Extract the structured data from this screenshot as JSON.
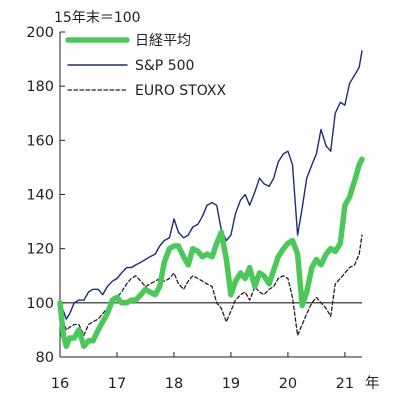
{
  "chart_data": {
    "type": "line",
    "unit_label": "15年末＝100",
    "x_unit_label": "年",
    "x_ticks": [
      "16",
      "17",
      "18",
      "19",
      "20",
      "21"
    ],
    "y_ticks": [
      80,
      100,
      120,
      140,
      160,
      180,
      200
    ],
    "ylim": [
      80,
      200
    ],
    "xlim": [
      2016.0,
      2021.3
    ],
    "reference_line": 100,
    "grid": false,
    "legend_position": "top-left",
    "series": [
      {
        "name": "日経平均",
        "color": "#4cc75a",
        "style": "thick",
        "points": [
          [
            2016.0,
            100
          ],
          [
            2016.06,
            88
          ],
          [
            2016.11,
            84
          ],
          [
            2016.17,
            87
          ],
          [
            2016.25,
            87
          ],
          [
            2016.33,
            90
          ],
          [
            2016.42,
            84
          ],
          [
            2016.5,
            86
          ],
          [
            2016.58,
            86
          ],
          [
            2016.67,
            90
          ],
          [
            2016.75,
            93
          ],
          [
            2016.83,
            96
          ],
          [
            2016.92,
            101
          ],
          [
            2017.0,
            102
          ],
          [
            2017.08,
            100
          ],
          [
            2017.17,
            100
          ],
          [
            2017.25,
            101
          ],
          [
            2017.33,
            101
          ],
          [
            2017.42,
            103
          ],
          [
            2017.5,
            105
          ],
          [
            2017.58,
            104
          ],
          [
            2017.67,
            103
          ],
          [
            2017.75,
            106
          ],
          [
            2017.83,
            115
          ],
          [
            2017.92,
            120
          ],
          [
            2018.0,
            121
          ],
          [
            2018.08,
            121
          ],
          [
            2018.17,
            117
          ],
          [
            2018.25,
            114
          ],
          [
            2018.33,
            120
          ],
          [
            2018.42,
            119
          ],
          [
            2018.5,
            117
          ],
          [
            2018.58,
            118
          ],
          [
            2018.67,
            117
          ],
          [
            2018.75,
            122
          ],
          [
            2018.83,
            126
          ],
          [
            2018.92,
            116
          ],
          [
            2019.0,
            103
          ],
          [
            2019.08,
            108
          ],
          [
            2019.17,
            111
          ],
          [
            2019.25,
            109
          ],
          [
            2019.33,
            113
          ],
          [
            2019.42,
            106
          ],
          [
            2019.5,
            111
          ],
          [
            2019.58,
            110
          ],
          [
            2019.67,
            107
          ],
          [
            2019.75,
            112
          ],
          [
            2019.83,
            117
          ],
          [
            2019.92,
            120
          ],
          [
            2020.0,
            122
          ],
          [
            2020.08,
            123
          ],
          [
            2020.17,
            118
          ],
          [
            2020.25,
            99
          ],
          [
            2020.33,
            104
          ],
          [
            2020.42,
            113
          ],
          [
            2020.5,
            116
          ],
          [
            2020.58,
            114
          ],
          [
            2020.67,
            118
          ],
          [
            2020.75,
            120
          ],
          [
            2020.83,
            119
          ],
          [
            2020.92,
            122
          ],
          [
            2021.0,
            136
          ],
          [
            2021.08,
            139
          ],
          [
            2021.17,
            145
          ],
          [
            2021.25,
            151
          ],
          [
            2021.3,
            153
          ]
        ]
      },
      {
        "name": "S&P 500",
        "color": "#1d2d73",
        "style": "solid",
        "points": [
          [
            2016.0,
            100
          ],
          [
            2016.06,
            97
          ],
          [
            2016.11,
            94
          ],
          [
            2016.17,
            96
          ],
          [
            2016.25,
            100
          ],
          [
            2016.33,
            101
          ],
          [
            2016.42,
            101
          ],
          [
            2016.5,
            104
          ],
          [
            2016.58,
            105
          ],
          [
            2016.67,
            105
          ],
          [
            2016.75,
            103
          ],
          [
            2016.83,
            106
          ],
          [
            2016.92,
            108
          ],
          [
            2017.0,
            109
          ],
          [
            2017.08,
            111
          ],
          [
            2017.17,
            113
          ],
          [
            2017.25,
            113
          ],
          [
            2017.33,
            114
          ],
          [
            2017.42,
            115
          ],
          [
            2017.5,
            116
          ],
          [
            2017.58,
            117
          ],
          [
            2017.67,
            118
          ],
          [
            2017.75,
            121
          ],
          [
            2017.83,
            123
          ],
          [
            2017.92,
            124
          ],
          [
            2018.0,
            131
          ],
          [
            2018.08,
            126
          ],
          [
            2018.17,
            124
          ],
          [
            2018.25,
            125
          ],
          [
            2018.33,
            128
          ],
          [
            2018.42,
            129
          ],
          [
            2018.5,
            132
          ],
          [
            2018.58,
            136
          ],
          [
            2018.67,
            137
          ],
          [
            2018.75,
            136
          ],
          [
            2018.83,
            127
          ],
          [
            2018.92,
            123
          ],
          [
            2019.0,
            125
          ],
          [
            2019.08,
            133
          ],
          [
            2019.17,
            138
          ],
          [
            2019.25,
            140
          ],
          [
            2019.33,
            136
          ],
          [
            2019.42,
            141
          ],
          [
            2019.5,
            146
          ],
          [
            2019.58,
            144
          ],
          [
            2019.67,
            143
          ],
          [
            2019.75,
            146
          ],
          [
            2019.83,
            152
          ],
          [
            2019.92,
            155
          ],
          [
            2020.0,
            156
          ],
          [
            2020.08,
            151
          ],
          [
            2020.17,
            125
          ],
          [
            2020.25,
            135
          ],
          [
            2020.33,
            146
          ],
          [
            2020.42,
            151
          ],
          [
            2020.5,
            155
          ],
          [
            2020.58,
            164
          ],
          [
            2020.67,
            158
          ],
          [
            2020.75,
            156
          ],
          [
            2020.83,
            170
          ],
          [
            2020.92,
            174
          ],
          [
            2021.0,
            173
          ],
          [
            2021.08,
            181
          ],
          [
            2021.17,
            184
          ],
          [
            2021.25,
            187
          ],
          [
            2021.3,
            193
          ]
        ]
      },
      {
        "name": "EURO STOXX",
        "color": "#222222",
        "style": "dashed",
        "points": [
          [
            2016.0,
            100
          ],
          [
            2016.06,
            93
          ],
          [
            2016.11,
            90
          ],
          [
            2016.17,
            91
          ],
          [
            2016.25,
            92
          ],
          [
            2016.33,
            92
          ],
          [
            2016.42,
            88
          ],
          [
            2016.5,
            92
          ],
          [
            2016.58,
            93
          ],
          [
            2016.67,
            94
          ],
          [
            2016.75,
            96
          ],
          [
            2016.83,
            98
          ],
          [
            2016.92,
            101
          ],
          [
            2017.0,
            102
          ],
          [
            2017.08,
            104
          ],
          [
            2017.17,
            107
          ],
          [
            2017.25,
            109
          ],
          [
            2017.33,
            110
          ],
          [
            2017.42,
            108
          ],
          [
            2017.5,
            106
          ],
          [
            2017.58,
            107
          ],
          [
            2017.67,
            108
          ],
          [
            2017.75,
            109
          ],
          [
            2017.83,
            108
          ],
          [
            2017.92,
            109
          ],
          [
            2018.0,
            111
          ],
          [
            2018.08,
            107
          ],
          [
            2018.17,
            105
          ],
          [
            2018.25,
            108
          ],
          [
            2018.33,
            110
          ],
          [
            2018.42,
            109
          ],
          [
            2018.5,
            108
          ],
          [
            2018.58,
            107
          ],
          [
            2018.67,
            106
          ],
          [
            2018.75,
            100
          ],
          [
            2018.83,
            98
          ],
          [
            2018.92,
            93
          ],
          [
            2019.0,
            97
          ],
          [
            2019.08,
            101
          ],
          [
            2019.17,
            103
          ],
          [
            2019.25,
            104
          ],
          [
            2019.33,
            101
          ],
          [
            2019.42,
            106
          ],
          [
            2019.5,
            104
          ],
          [
            2019.58,
            103
          ],
          [
            2019.67,
            105
          ],
          [
            2019.75,
            106
          ],
          [
            2019.83,
            109
          ],
          [
            2019.92,
            110
          ],
          [
            2020.0,
            109
          ],
          [
            2020.08,
            102
          ],
          [
            2020.17,
            88
          ],
          [
            2020.25,
            92
          ],
          [
            2020.33,
            96
          ],
          [
            2020.42,
            100
          ],
          [
            2020.5,
            102
          ],
          [
            2020.58,
            100
          ],
          [
            2020.67,
            98
          ],
          [
            2020.75,
            95
          ],
          [
            2020.83,
            107
          ],
          [
            2020.92,
            109
          ],
          [
            2021.0,
            111
          ],
          [
            2021.08,
            113
          ],
          [
            2021.17,
            114
          ],
          [
            2021.25,
            118
          ],
          [
            2021.3,
            125
          ]
        ]
      }
    ]
  }
}
